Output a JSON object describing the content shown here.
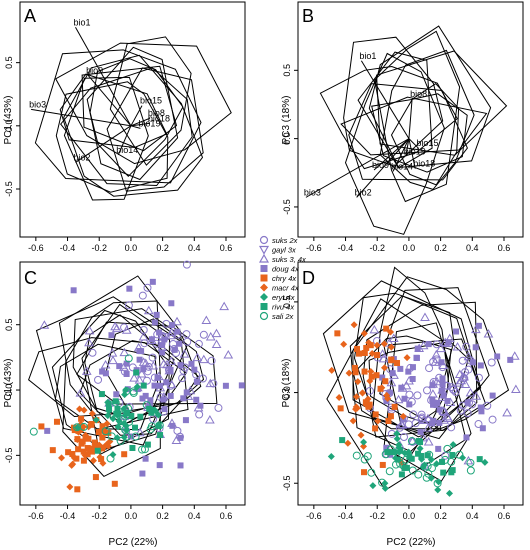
{
  "panel_letters": [
    "A",
    "B",
    "C",
    "D"
  ],
  "axis_labels": {
    "pc1": "PC1 (43%)",
    "pc3": "PC3 (18%)",
    "pc2": "PC2 (22%)"
  },
  "legend": [
    {
      "label": "suks 2x",
      "shape": "circle-open",
      "color": "#8878c8"
    },
    {
      "label": "gayl 3x",
      "shape": "triangle-down-open",
      "color": "#8878c8"
    },
    {
      "label": "suks 3, 4x",
      "shape": "triangle-up-open",
      "color": "#8878c8"
    },
    {
      "label": "doug 4x",
      "shape": "square-filled",
      "color": "#8878c8"
    },
    {
      "label": "chry 4x",
      "shape": "square-filled",
      "color": "#e8641c"
    },
    {
      "label": "macr 4x",
      "shape": "diamond-filled",
      "color": "#e8641c"
    },
    {
      "label": "eryt 4x",
      "shape": "diamond-filled",
      "color": "#1fa57a"
    },
    {
      "label": "rivu 4x",
      "shape": "square-filled",
      "color": "#1fa57a"
    },
    {
      "label": "sali 2x",
      "shape": "circle-open",
      "color": "#1fa57a"
    }
  ],
  "colors": {
    "purple": "#8878c8",
    "orange": "#e8641c",
    "green": "#1fa57a",
    "lines": "#000000"
  },
  "chart_data": [
    {
      "panel": "A",
      "type": "scatter",
      "xlabel": "",
      "ylabel": "PC1 (43%)",
      "xlim": [
        -0.7,
        0.72
      ],
      "ylim": [
        -0.88,
        0.98
      ],
      "xticks": [
        -0.6,
        -0.4,
        -0.2,
        0.0,
        0.2,
        0.4,
        0.6
      ],
      "yticks": [
        -0.5,
        0.0,
        0.5
      ],
      "grid": false,
      "loadings": [
        {
          "label": "bio1",
          "x": -0.35,
          "y": 0.78
        },
        {
          "label": "bio9",
          "x": -0.27,
          "y": 0.4
        },
        {
          "label": "bio3",
          "x": -0.63,
          "y": 0.13
        },
        {
          "label": "bio15",
          "x": 0.07,
          "y": 0.16
        },
        {
          "label": "bio8",
          "x": 0.12,
          "y": 0.06
        },
        {
          "label": "bio18",
          "x": 0.12,
          "y": 0.02
        },
        {
          "label": "bio19",
          "x": 0.06,
          "y": -0.02
        },
        {
          "label": "bio14",
          "x": -0.08,
          "y": -0.23
        },
        {
          "label": "bio2",
          "x": -0.35,
          "y": -0.29
        }
      ]
    },
    {
      "panel": "B",
      "type": "scatter",
      "xlabel": "",
      "ylabel": "PC3 (18%)",
      "xlim": [
        -0.7,
        0.72
      ],
      "ylim": [
        -0.72,
        1.0
      ],
      "xticks": [
        -0.6,
        -0.4,
        -0.2,
        0.0,
        0.2,
        0.4,
        0.6
      ],
      "yticks": [
        -0.5,
        0.0,
        0.5
      ],
      "grid": false,
      "loadings": [
        {
          "label": "bio1",
          "x": -0.3,
          "y": 0.57
        },
        {
          "label": "bio8",
          "x": 0.02,
          "y": 0.29
        },
        {
          "label": "bio15",
          "x": 0.06,
          "y": -0.07
        },
        {
          "label": "bio19",
          "x": -0.02,
          "y": -0.13
        },
        {
          "label": "bio9",
          "x": -0.22,
          "y": -0.23
        },
        {
          "label": "bio14",
          "x": -0.1,
          "y": -0.24
        },
        {
          "label": "bio18",
          "x": 0.04,
          "y": -0.22
        },
        {
          "label": "bio2",
          "x": -0.33,
          "y": -0.43
        },
        {
          "label": "bio3",
          "x": -0.65,
          "y": -0.43
        }
      ]
    },
    {
      "panel": "C",
      "type": "scatter",
      "xlabel": "PC2 (22%)",
      "ylabel": "PC1 (43%)",
      "xlim": [
        -0.7,
        0.72
      ],
      "ylim": [
        -0.88,
        0.98
      ],
      "xticks": [
        -0.6,
        -0.4,
        -0.2,
        0.0,
        0.2,
        0.4,
        0.6
      ],
      "yticks": [
        -0.5,
        0.0,
        0.5
      ],
      "grid": false,
      "clusters": [
        {
          "name": "purple",
          "color": "#8878c8",
          "cx": 0.15,
          "cy": 0.15,
          "sx": 0.2,
          "sy": 0.3,
          "n": 170
        },
        {
          "name": "orange",
          "color": "#e8641c",
          "cx": -0.28,
          "cy": -0.4,
          "sx": 0.1,
          "sy": 0.12,
          "n": 70
        },
        {
          "name": "green",
          "color": "#1fa57a",
          "cx": -0.05,
          "cy": -0.2,
          "sx": 0.14,
          "sy": 0.14,
          "n": 70
        }
      ]
    },
    {
      "panel": "D",
      "type": "scatter",
      "xlabel": "PC2 (22%)",
      "ylabel": "PC3 (18%)",
      "xlim": [
        -0.7,
        0.72
      ],
      "ylim": [
        -0.62,
        0.72
      ],
      "xticks": [
        -0.6,
        -0.4,
        -0.2,
        0.0,
        0.2,
        0.4,
        0.6
      ],
      "yticks": [
        -0.5,
        0.0,
        0.5
      ],
      "grid": false,
      "clusters": [
        {
          "name": "purple",
          "color": "#8878c8",
          "cx": 0.15,
          "cy": 0.0,
          "sx": 0.22,
          "sy": 0.18,
          "n": 170
        },
        {
          "name": "orange",
          "color": "#e8641c",
          "cx": -0.25,
          "cy": 0.05,
          "sx": 0.1,
          "sy": 0.2,
          "n": 65
        },
        {
          "name": "green",
          "color": "#1fa57a",
          "cx": 0.05,
          "cy": -0.38,
          "sx": 0.18,
          "sy": 0.07,
          "n": 75
        }
      ]
    }
  ]
}
